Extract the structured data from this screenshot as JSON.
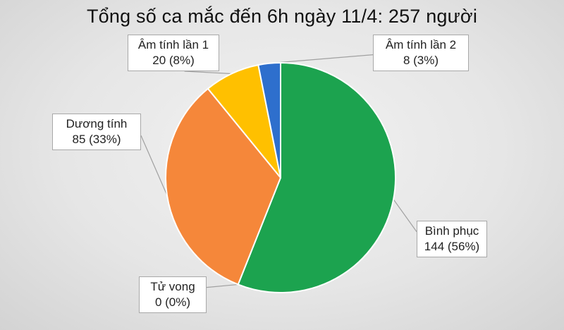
{
  "chart_data": {
    "type": "pie",
    "title": "Tổng số ca mắc đến 6h ngày 11/4: 257 người",
    "slices": [
      {
        "name": "Bình phục",
        "value": 144,
        "percent_label": "144 (56%)",
        "color": "#1ca34f"
      },
      {
        "name": "Tử vong",
        "value": 0,
        "percent_label": "0 (0%)",
        "color": "#7f7f7f"
      },
      {
        "name": "Dương tính",
        "value": 85,
        "percent_label": "85 (33%)",
        "color": "#f5873a"
      },
      {
        "name": "Âm tính lần 1",
        "value": 20,
        "percent_label": "20 (8%)",
        "color": "#ffc000"
      },
      {
        "name": "Âm tính lần 2",
        "value": 8,
        "percent_label": "8 (3%)",
        "color": "#2e6fcd"
      }
    ],
    "legend": "none",
    "data_labels": "callouts"
  }
}
